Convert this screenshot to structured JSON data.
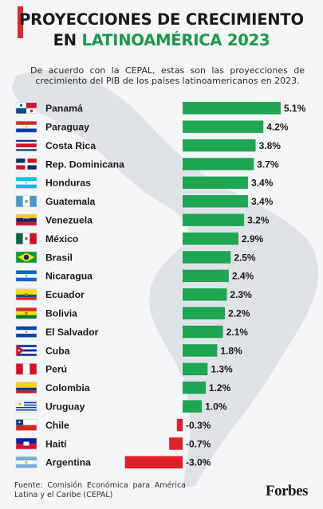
{
  "header": {
    "title_line1": "PROYECCIONES DE CRECIMIENTO",
    "title_line2_prefix": "EN ",
    "title_line2_accent": "LATINOAMÉRICA 2023",
    "subtitle": "De acuerdo con la CEPAL, estas son las proyecciones de crecimiento del PIB de los países latinoamericanos en 2023."
  },
  "footer": {
    "source": "Fuente: Comisión Económica para América Latina y el Caribe (CEPAL)",
    "brand": "Forbes"
  },
  "colors": {
    "positive": "#1ea653",
    "negative": "#e0202a",
    "title_accent": "#1a9a46",
    "header_accent_bar": "#e02a2a"
  },
  "chart_data": {
    "type": "bar",
    "orientation": "horizontal",
    "unit": "%",
    "categories": [
      "Panamá",
      "Paraguay",
      "Costa Rica",
      "Rep. Dominicana",
      "Honduras",
      "Guatemala",
      "Venezuela",
      "México",
      "Brasil",
      "Nicaragua",
      "Ecuador",
      "Bolivia",
      "El Salvador",
      "Cuba",
      "Perú",
      "Colombia",
      "Uruguay",
      "Chile",
      "Haití",
      "Argentina"
    ],
    "values": [
      5.1,
      4.2,
      3.8,
      3.7,
      3.4,
      3.4,
      3.2,
      2.9,
      2.5,
      2.4,
      2.3,
      2.2,
      2.1,
      1.8,
      1.3,
      1.2,
      1.0,
      -0.3,
      -0.7,
      -3.0
    ],
    "labels": [
      "5.1%",
      "4.2%",
      "3.8%",
      "3.7%",
      "3.4%",
      "3.4%",
      "3.2%",
      "2.9%",
      "2.5%",
      "2.4%",
      "2.3%",
      "2.2%",
      "2.1%",
      "1.8%",
      "1.3%",
      "1.2%",
      "1.0%",
      "-0.3%",
      "-0.7%",
      "-3.0%"
    ],
    "flag_icons": [
      "panama-flag-icon",
      "paraguay-flag-icon",
      "costa-rica-flag-icon",
      "dominican-republic-flag-icon",
      "honduras-flag-icon",
      "guatemala-flag-icon",
      "venezuela-flag-icon",
      "mexico-flag-icon",
      "brazil-flag-icon",
      "nicaragua-flag-icon",
      "ecuador-flag-icon",
      "bolivia-flag-icon",
      "el-salvador-flag-icon",
      "cuba-flag-icon",
      "peru-flag-icon",
      "colombia-flag-icon",
      "uruguay-flag-icon",
      "chile-flag-icon",
      "haiti-flag-icon",
      "argentina-flag-icon"
    ],
    "xlim": [
      -3.0,
      5.1
    ],
    "grid": false,
    "legend": "none"
  }
}
